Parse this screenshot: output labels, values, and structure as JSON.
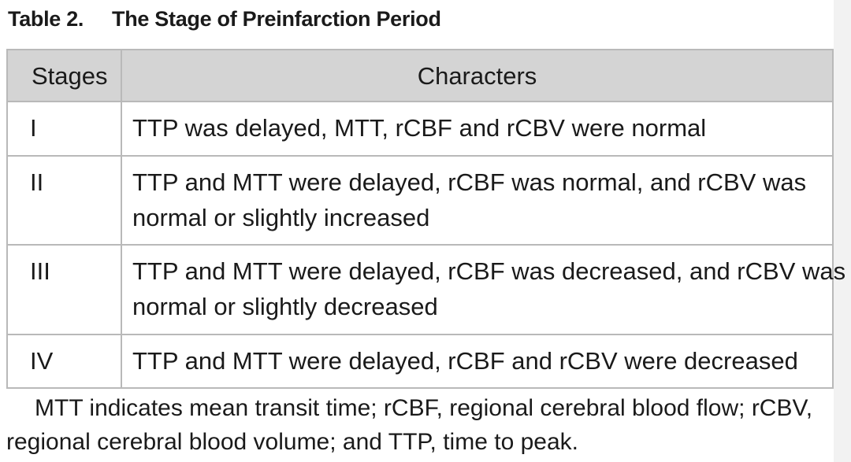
{
  "caption": {
    "number": "Table 2.",
    "title": "The Stage of Preinfarction Period"
  },
  "table": {
    "headers": [
      "Stages",
      "Characters"
    ],
    "rows": [
      {
        "stage": "I",
        "lines": [
          "TTP was delayed, MTT, rCBF and rCBV were normal"
        ]
      },
      {
        "stage": "II",
        "lines": [
          "TTP and MTT were delayed, rCBF was normal, and rCBV was",
          "normal or slightly increased"
        ]
      },
      {
        "stage": "III",
        "lines": [
          "TTP and MTT were delayed, rCBF was decreased, and rCBV was",
          "normal or slightly decreased"
        ]
      },
      {
        "stage": "IV",
        "lines": [
          "TTP and MTT were delayed, rCBF and rCBV were decreased"
        ]
      }
    ]
  },
  "footnote": {
    "lines": [
      "MTT indicates mean transit time; rCBF, regional cerebral blood flow; rCBV,",
      "regional cerebral blood volume; and TTP, time to peak."
    ]
  }
}
